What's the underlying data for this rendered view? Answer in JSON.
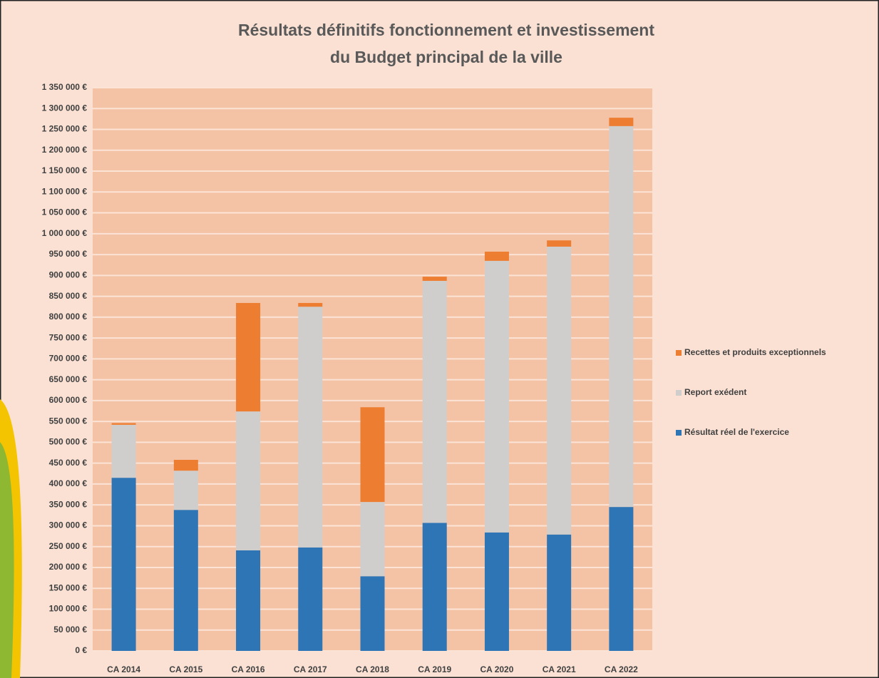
{
  "chart_data": {
    "type": "stacked_bar",
    "title": [
      "Résultats définitifs fonctionnement et investissement",
      "du Budget principal de la ville"
    ],
    "categories": [
      "CA 2014",
      "CA 2015",
      "CA 2016",
      "CA 2017",
      "CA 2018",
      "CA 2019",
      "CA 2020",
      "CA 2021",
      "CA 2022"
    ],
    "series": [
      {
        "name": "Résultat réel de l'exercice",
        "color": "#2e75b6",
        "values": [
          415000,
          338000,
          241000,
          248000,
          179000,
          307000,
          284000,
          279000,
          345000
        ]
      },
      {
        "name": "Report exédent",
        "color": "#d0cecd",
        "values": [
          127000,
          94000,
          333000,
          577000,
          178000,
          580000,
          651000,
          690000,
          913000
        ]
      },
      {
        "name": "Recettes et produits exceptionnels",
        "color": "#ed7d31",
        "values": [
          4000,
          26000,
          260000,
          9000,
          227000,
          10000,
          22000,
          15000,
          20000
        ]
      }
    ],
    "ylim": [
      0,
      1350000
    ],
    "yticks": [
      {
        "value": 0,
        "label": "0 €"
      },
      {
        "value": 50000,
        "label": "50 000 €"
      },
      {
        "value": 100000,
        "label": "100 000 €"
      },
      {
        "value": 150000,
        "label": "150 000 €"
      },
      {
        "value": 200000,
        "label": "200 000 €"
      },
      {
        "value": 250000,
        "label": "250 000 €"
      },
      {
        "value": 300000,
        "label": "300 000 €"
      },
      {
        "value": 350000,
        "label": "350 000 €"
      },
      {
        "value": 400000,
        "label": "400 000 €"
      },
      {
        "value": 450000,
        "label": "450 000 €"
      },
      {
        "value": 500000,
        "label": "500 000 €"
      },
      {
        "value": 550000,
        "label": "550 000 €"
      },
      {
        "value": 600000,
        "label": "600 000 €"
      },
      {
        "value": 650000,
        "label": "650 000 €"
      },
      {
        "value": 700000,
        "label": "700 000 €"
      },
      {
        "value": 750000,
        "label": "750 000 €"
      },
      {
        "value": 800000,
        "label": "800 000 €"
      },
      {
        "value": 850000,
        "label": "850 000 €"
      },
      {
        "value": 900000,
        "label": "900 000 €"
      },
      {
        "value": 950000,
        "label": "950 000 €"
      },
      {
        "value": 1000000,
        "label": "1 000 000 €"
      },
      {
        "value": 1050000,
        "label": "1 050 000 €"
      },
      {
        "value": 1100000,
        "label": "1 100 000 €"
      },
      {
        "value": 1150000,
        "label": "1 150 000 €"
      },
      {
        "value": 1200000,
        "label": "1 200 000 €"
      },
      {
        "value": 1250000,
        "label": "1 250 000 €"
      },
      {
        "value": 1300000,
        "label": "1 300 000 €"
      },
      {
        "value": 1350000,
        "label": "1 350 000 €"
      }
    ],
    "grid": true,
    "legend": "right"
  }
}
